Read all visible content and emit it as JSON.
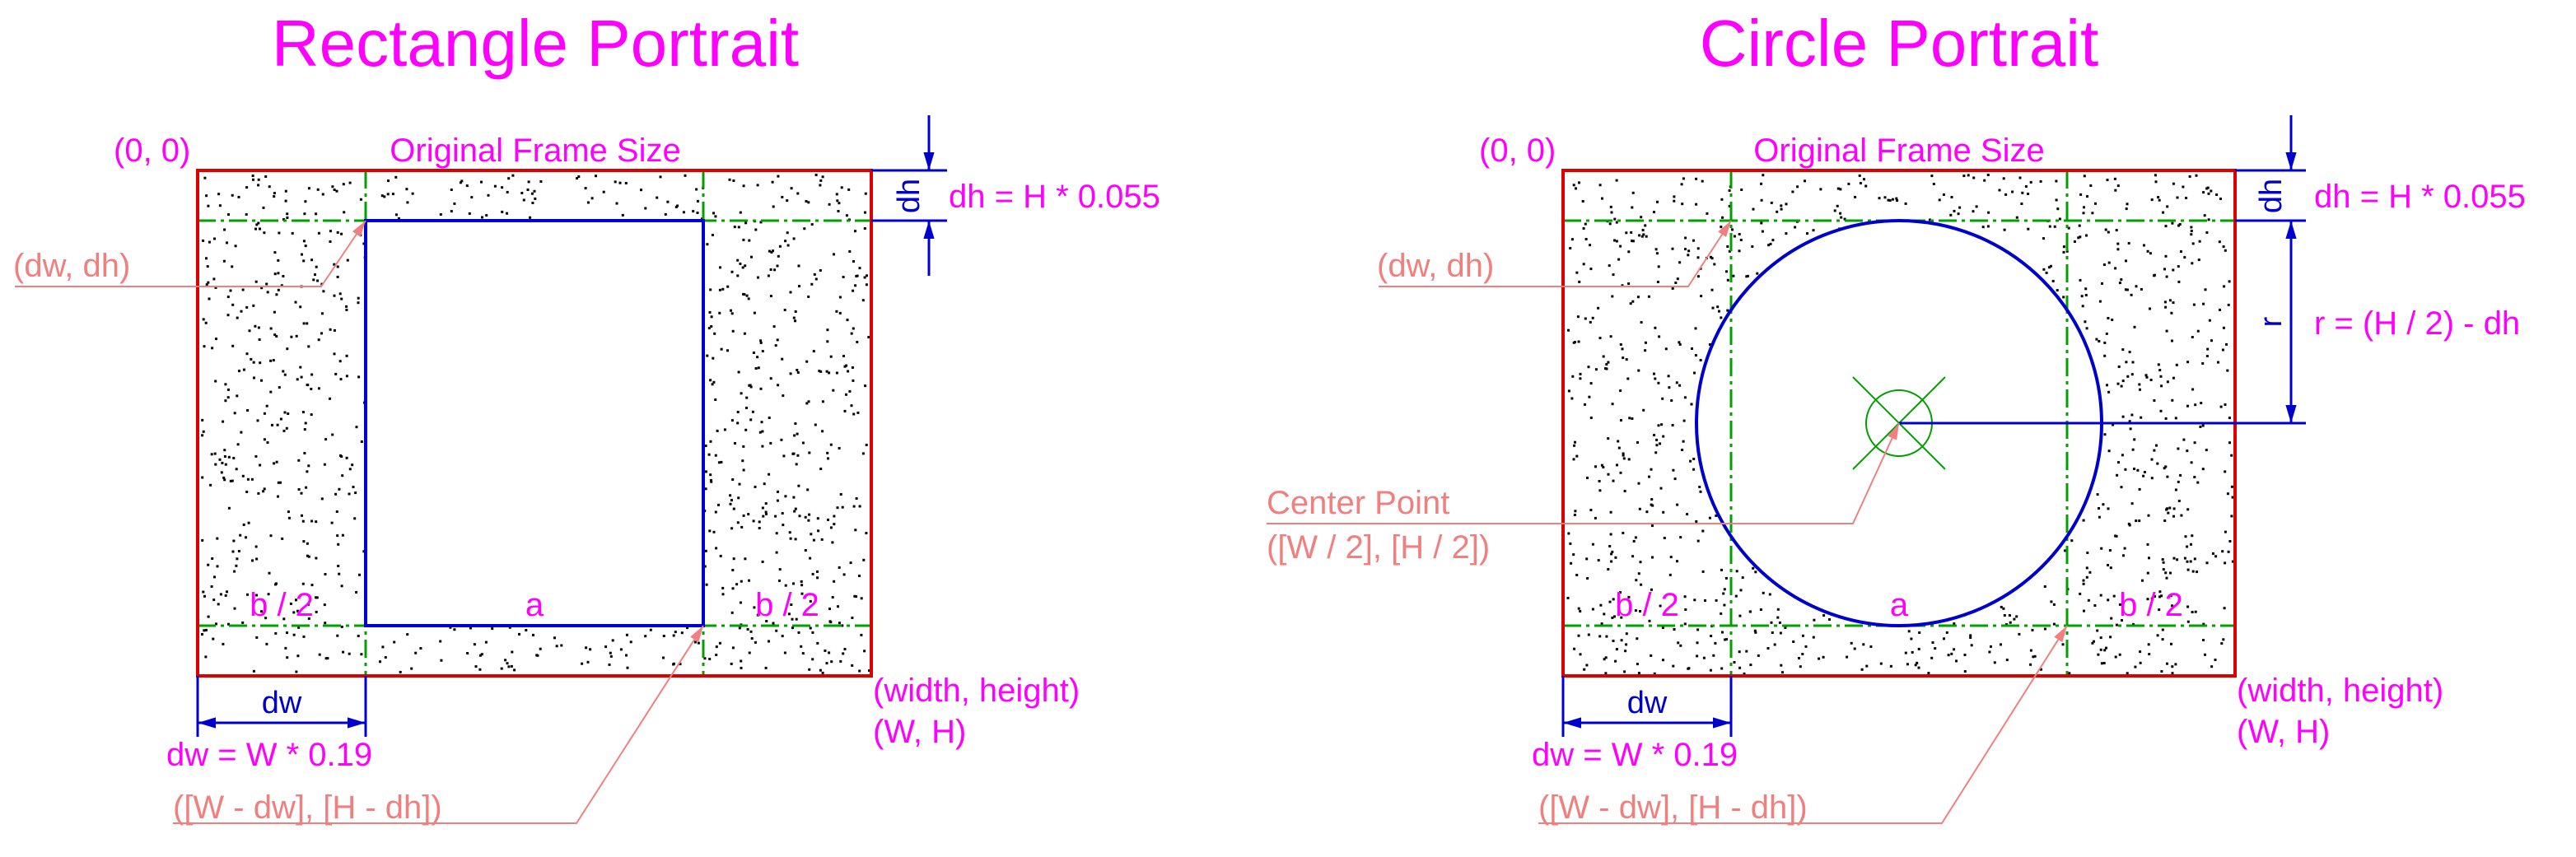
{
  "colors": {
    "magenta": "#ff00ff",
    "salmon": "#f08080",
    "blue": "#0000cc",
    "red": "#dd0000",
    "green": "#00a000",
    "stipple": "#000000"
  },
  "panels": {
    "rect": {
      "title": "Rectangle Portrait",
      "origin_label": "(0, 0)",
      "frame_label": "Original Frame Size",
      "dh_dim_text": "dh",
      "dh_formula": "dh = H * 0.055",
      "dwdh_label": "(dw, dh)",
      "b_left": "b / 2",
      "a_label": "a",
      "b_right": "b / 2",
      "dw_dim_text": "dw",
      "dw_formula": "dw = W * 0.19",
      "wh_label_1": "(width, height)",
      "wh_label_2": "(W, H)",
      "corner_label": "([W - dw], [H - dh])"
    },
    "circle": {
      "title": "Circle Portrait",
      "origin_label": "(0, 0)",
      "frame_label": "Original Frame Size",
      "dh_dim_text": "dh",
      "dh_formula": "dh = H * 0.055",
      "r_dim_text": "r",
      "r_formula": "r = (H / 2) - dh",
      "dwdh_label": "(dw, dh)",
      "center_label_1": "Center Point",
      "center_label_2": "([W / 2], [H / 2])",
      "b_left": "b / 2",
      "a_label": "a",
      "b_right": "b / 2",
      "dw_dim_text": "dw",
      "dw_formula": "dw = W * 0.19",
      "wh_label_1": "(width, height)",
      "wh_label_2": "(W, H)",
      "corner_label": "([W - dw], [H - dh])"
    }
  }
}
